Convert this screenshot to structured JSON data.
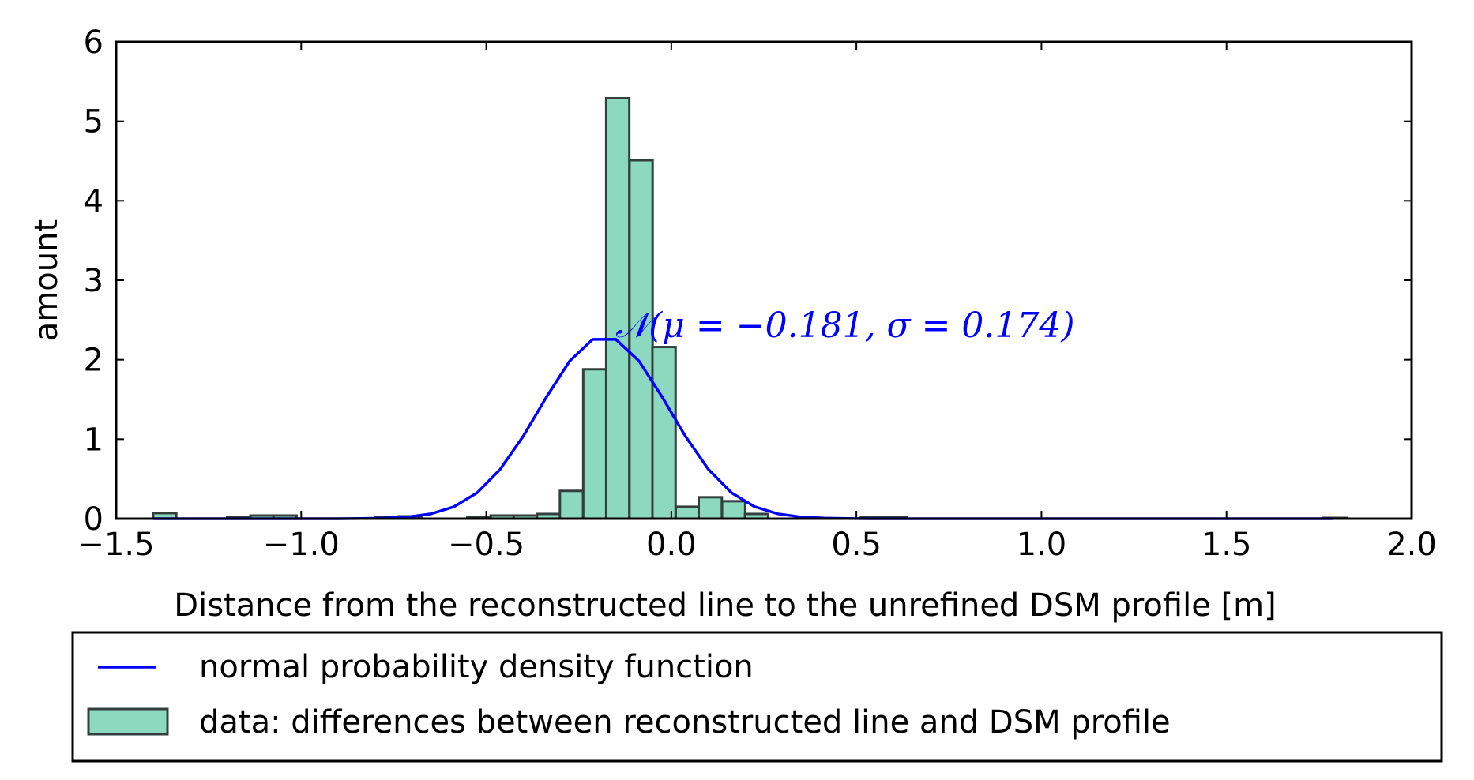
{
  "chart_data": {
    "type": "bar",
    "title": "",
    "xlabel": "Distance from the reconstructed line to the unrefined DSM profile [m]",
    "ylabel": "amount",
    "xlim": [
      -1.5,
      2.0
    ],
    "ylim": [
      0,
      6
    ],
    "xticks": [
      -1.5,
      -1.0,
      -0.5,
      0.0,
      0.5,
      1.0,
      1.5,
      2.0
    ],
    "xtick_labels": [
      "−1.5",
      "−1.0",
      "−0.5",
      "0.0",
      "0.5",
      "1.0",
      "1.5",
      "2.0"
    ],
    "yticks": [
      0,
      1,
      2,
      3,
      4,
      5,
      6
    ],
    "ytick_labels": [
      "0",
      "1",
      "2",
      "3",
      "4",
      "5",
      "6"
    ],
    "grid": false,
    "legend_position": "below",
    "histogram": {
      "name": "data: differences between reconstructed line and DSM profile",
      "color": "#8dd9c0",
      "edge_color": "#333f3c",
      "bin_width": 0.0625,
      "bin_starts": [
        -1.4,
        -1.2,
        -1.137,
        -1.075,
        -0.8,
        -0.738,
        -0.551,
        -0.488,
        -0.426,
        -0.363,
        -0.301,
        -0.238,
        -0.176,
        -0.113,
        -0.051,
        0.012,
        0.074,
        0.137,
        0.199,
        0.512,
        0.574,
        1.762
      ],
      "values": [
        0.07,
        0.02,
        0.04,
        0.04,
        0.02,
        0.03,
        0.02,
        0.04,
        0.04,
        0.06,
        0.35,
        1.88,
        5.29,
        4.51,
        2.16,
        0.15,
        0.27,
        0.22,
        0.06,
        0.02,
        0.02,
        0.01
      ]
    },
    "pdf": {
      "name": "normal probability density function",
      "color": "#0000ff",
      "mu": -0.181,
      "sigma": 0.174,
      "x_range": [
        -1.4,
        1.8
      ]
    },
    "annotation": "𝒩(μ = −0.181, σ = 0.174)"
  }
}
